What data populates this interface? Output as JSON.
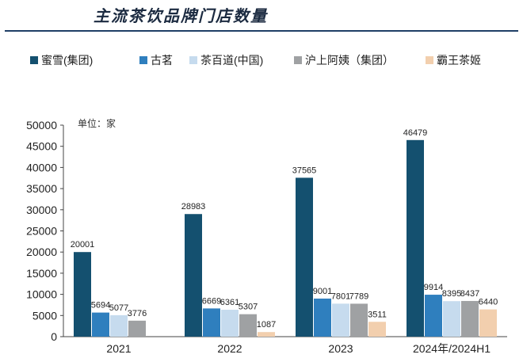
{
  "title": "主流茶饮品牌门店数量",
  "chart_data": {
    "type": "bar",
    "unit_note": "单位：家",
    "categories": [
      "2021",
      "2022",
      "2023",
      "2024年/2024H1"
    ],
    "series": [
      {
        "name": "蜜雪(集团)",
        "color": "#14506f",
        "values": [
          20001,
          28983,
          37565,
          46479
        ]
      },
      {
        "name": "古茗",
        "color": "#2f7fbe",
        "values": [
          5694,
          6669,
          9001,
          9914
        ]
      },
      {
        "name": "茶百道(中国)",
        "color": "#c6dbee",
        "values": [
          5077,
          6361,
          7801,
          8395
        ]
      },
      {
        "name": "沪上阿姨（集团）",
        "color": "#9fa1a3",
        "values": [
          3776,
          5307,
          7789,
          8437
        ]
      },
      {
        "name": "霸王茶姬",
        "color": "#f2cfae",
        "values": [
          null,
          1087,
          3511,
          6440
        ]
      }
    ],
    "ylim": [
      0,
      50000
    ],
    "yticks": [
      0,
      5000,
      10000,
      15000,
      20000,
      25000,
      30000,
      35000,
      40000,
      45000,
      50000
    ],
    "legend_position": "top",
    "grid": false
  }
}
